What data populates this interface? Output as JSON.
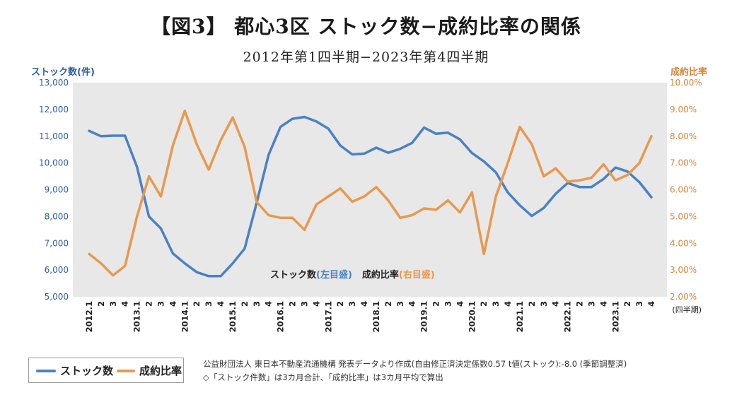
{
  "title": "【図3】 都心3区 ストック数−成約比率の関係",
  "subtitle": "2012年第1四半期−2023年第4四半期",
  "notes": [
    "公益財団法人 東日本不動産流通機構 発表データより作成(自由修正済決定係数0.57 t値(ストック):-8.0 (季節調整済)",
    "◇「ストック件数」は3カ月合計、「成約比率」は3カ月平均で算出"
  ],
  "legend": {
    "stock": "ストック数",
    "ratio": "成約比率"
  },
  "inline_legend": {
    "stock": "ストック数",
    "stock_axis": "(左目盛)",
    "ratio": "成約比率",
    "ratio_axis": "(右目盛)"
  },
  "colors": {
    "stock": "#4a82c3",
    "ratio": "#e8994f",
    "plot_bg": "#e8e8e8"
  },
  "chart_data": {
    "type": "line",
    "x_tick_labels": [
      "2012.1",
      "2",
      "3",
      "4",
      "2013.1",
      "2",
      "3",
      "4",
      "2014.1",
      "2",
      "3",
      "4",
      "2015.1",
      "2",
      "3",
      "4",
      "2016.1",
      "2",
      "3",
      "4",
      "2017.1",
      "2",
      "3",
      "4",
      "2018.1",
      "2",
      "3",
      "4",
      "2019.1",
      "2",
      "3",
      "4",
      "2020.1",
      "2",
      "3",
      "4",
      "2021.1",
      "2",
      "3",
      "4",
      "2022.1",
      "2",
      "3",
      "4",
      "2023.1",
      "2",
      "3",
      "4"
    ],
    "x_unit_label": "(四半期)",
    "y_left": {
      "label": "ストック数(件)",
      "ticks": [
        "13,000",
        "12,000",
        "11,000",
        "10,000",
        "9,000",
        "8,000",
        "7,000",
        "6,000",
        "5,000"
      ],
      "range": [
        5000,
        13000
      ]
    },
    "y_right": {
      "label": "成約比率",
      "ticks": [
        "10.00%",
        "9.00%",
        "8.00%",
        "7.00%",
        "6.00%",
        "5.00%",
        "4.00%",
        "3.00%",
        "2.00%"
      ],
      "range": [
        2.0,
        10.0
      ]
    },
    "series": [
      {
        "name": "ストック数",
        "axis": "left",
        "values": [
          11200,
          11000,
          11020,
          11020,
          9850,
          8000,
          7550,
          6620,
          6250,
          5920,
          5770,
          5770,
          6250,
          6800,
          8500,
          10300,
          11350,
          11650,
          11720,
          11550,
          11280,
          10650,
          10320,
          10350,
          10570,
          10380,
          10530,
          10750,
          11320,
          11090,
          11130,
          10880,
          10370,
          10060,
          9650,
          8900,
          8420,
          8020,
          8320,
          8850,
          9250,
          9100,
          9100,
          9400,
          9830,
          9680,
          9280,
          8720
        ]
      },
      {
        "name": "成約比率",
        "axis": "right",
        "values": [
          3.6,
          3.25,
          2.8,
          3.15,
          5.0,
          6.5,
          5.75,
          7.65,
          8.95,
          7.7,
          6.75,
          7.85,
          8.7,
          7.6,
          5.55,
          5.05,
          4.95,
          4.95,
          4.5,
          5.45,
          5.75,
          6.05,
          5.55,
          5.75,
          6.1,
          5.6,
          4.95,
          5.05,
          5.3,
          5.25,
          5.6,
          5.15,
          5.9,
          3.6,
          5.75,
          7.0,
          8.35,
          7.7,
          6.5,
          6.8,
          6.3,
          6.35,
          6.45,
          6.95,
          6.35,
          6.55,
          7.0,
          8.0
        ]
      }
    ],
    "grid": false
  }
}
